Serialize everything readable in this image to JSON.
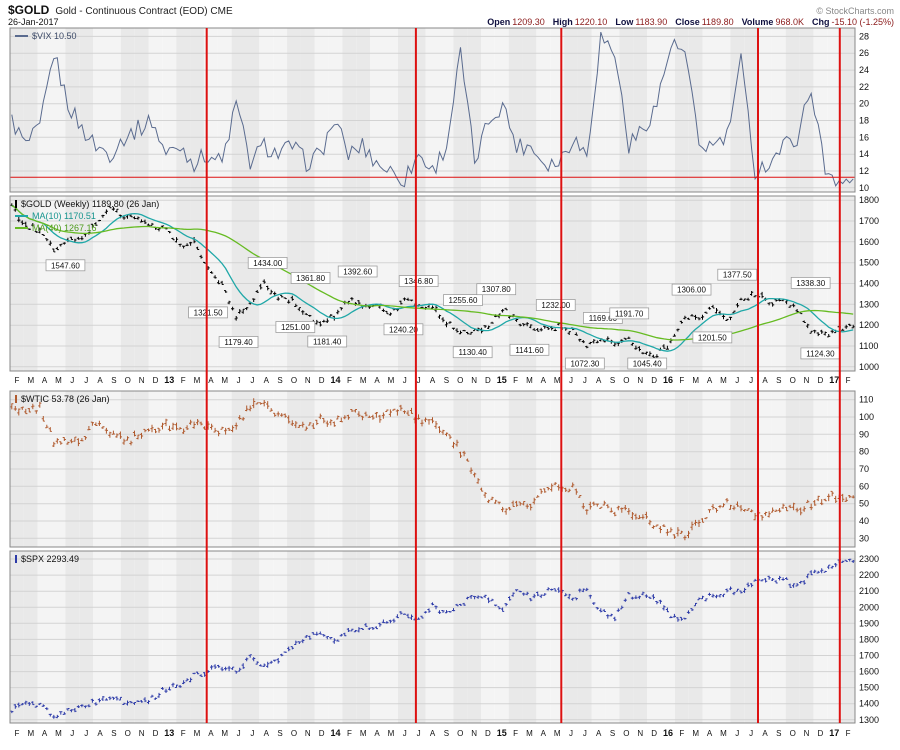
{
  "header": {
    "symbol": "$GOLD",
    "title": "Gold - Continuous Contract (EOD) CME",
    "date": "26-Jan-2017",
    "copyright": "© StockCharts.com",
    "quote": [
      {
        "label": "Open",
        "value": "1209.30"
      },
      {
        "label": "High",
        "value": "1220.10"
      },
      {
        "label": "Low",
        "value": "1183.90"
      },
      {
        "label": "Close",
        "value": "1189.80"
      },
      {
        "label": "Volume",
        "value": "968.0K"
      },
      {
        "label": "Chg",
        "value": "-15.10 (-1.25%)"
      }
    ]
  },
  "x_axis": {
    "labels": [
      "F",
      "M",
      "A",
      "M",
      "J",
      "J",
      "A",
      "S",
      "O",
      "N",
      "D",
      "13",
      "F",
      "M",
      "A",
      "M",
      "J",
      "J",
      "A",
      "S",
      "O",
      "N",
      "D",
      "14",
      "F",
      "M",
      "A",
      "M",
      "J",
      "J",
      "A",
      "S",
      "O",
      "N",
      "D",
      "15",
      "F",
      "M",
      "A",
      "M",
      "J",
      "J",
      "A",
      "S",
      "O",
      "N",
      "D",
      "16",
      "F",
      "M",
      "A",
      "M",
      "J",
      "J",
      "A",
      "S",
      "O",
      "N",
      "D",
      "17",
      "F"
    ]
  },
  "red_vlines": [
    14.2,
    29.3,
    39.8,
    54.0,
    59.9
  ],
  "colors": {
    "red_line": "#dd1111",
    "background_band_dark": "#e9e9e9",
    "background_band_light": "#f4f4f4"
  },
  "chart_data": [
    {
      "type": "line",
      "name": "$VIX",
      "legend": "$VIX 10.50",
      "last": 10.5,
      "color": "#5a6b8f",
      "ylim": [
        9.5,
        29
      ],
      "yticks": [
        28,
        26,
        24,
        22,
        20,
        18,
        16,
        14,
        12,
        10
      ],
      "support_line": 11.25,
      "values": [
        18,
        15,
        17,
        26,
        20,
        17,
        15,
        14,
        16,
        17,
        18,
        14,
        15,
        13,
        14,
        13,
        20,
        13,
        15,
        14,
        15,
        13,
        14,
        18,
        14,
        15,
        13,
        12,
        11,
        14,
        12,
        15,
        26,
        13,
        18,
        20,
        15,
        15,
        13,
        13,
        16,
        14,
        28,
        26,
        15,
        17,
        20,
        27,
        26,
        15,
        15,
        16,
        25,
        12,
        13,
        15,
        16,
        22,
        12,
        11,
        10.5
      ]
    },
    {
      "type": "ohlc",
      "name": "$GOLD",
      "legend": "$GOLD (Weekly) 1189.80 (26 Jan)",
      "last": 1189.8,
      "color": "#000000",
      "ylim": [
        980,
        1820
      ],
      "yticks": [
        1800,
        1700,
        1600,
        1500,
        1400,
        1300,
        1200,
        1100,
        1000
      ],
      "values": [
        1770,
        1670,
        1660,
        1560,
        1600,
        1615,
        1690,
        1770,
        1720,
        1715,
        1675,
        1660,
        1580,
        1595,
        1470,
        1390,
        1235,
        1310,
        1395,
        1330,
        1325,
        1250,
        1205,
        1245,
        1325,
        1295,
        1295,
        1250,
        1325,
        1285,
        1285,
        1210,
        1170,
        1175,
        1185,
        1280,
        1215,
        1185,
        1185,
        1190,
        1170,
        1095,
        1135,
        1115,
        1140,
        1065,
        1060,
        1115,
        1240,
        1235,
        1290,
        1215,
        1320,
        1350,
        1310,
        1315,
        1275,
        1175,
        1150,
        1190,
        1190
      ],
      "overlays": [
        {
          "name": "MA(10)",
          "legend": "MA(10) 1170.51",
          "color": "#20a8a8",
          "period": 10
        },
        {
          "name": "MA(40)",
          "legend": "MA(40) 1267.16",
          "color": "#66bb22",
          "period": 40
        }
      ],
      "annotations": [
        {
          "text": "1547.60",
          "idx": 4.0,
          "value": 1547.6,
          "side": "below"
        },
        {
          "text": "1321.50",
          "idx": 14.3,
          "value": 1321.5,
          "side": "below"
        },
        {
          "text": "1179.40",
          "idx": 16.5,
          "value": 1179.4,
          "side": "below"
        },
        {
          "text": "1434.00",
          "idx": 18.6,
          "value": 1434.0,
          "side": "above"
        },
        {
          "text": "1251.00",
          "idx": 20.6,
          "value": 1251.0,
          "side": "below"
        },
        {
          "text": "1361.80",
          "idx": 21.7,
          "value": 1361.8,
          "side": "above"
        },
        {
          "text": "1181.40",
          "idx": 22.9,
          "value": 1181.4,
          "side": "below"
        },
        {
          "text": "1392.60",
          "idx": 25.1,
          "value": 1392.6,
          "side": "above"
        },
        {
          "text": "1240.20",
          "idx": 28.4,
          "value": 1240.2,
          "side": "below"
        },
        {
          "text": "1346.80",
          "idx": 29.5,
          "value": 1346.8,
          "side": "above"
        },
        {
          "text": "1255.60",
          "idx": 32.7,
          "value": 1255.6,
          "side": "above"
        },
        {
          "text": "1130.40",
          "idx": 33.4,
          "value": 1130.4,
          "side": "below"
        },
        {
          "text": "1307.80",
          "idx": 35.1,
          "value": 1307.8,
          "side": "above"
        },
        {
          "text": "1141.60",
          "idx": 37.5,
          "value": 1141.6,
          "side": "below"
        },
        {
          "text": "1232.00",
          "idx": 39.4,
          "value": 1232.0,
          "side": "above"
        },
        {
          "text": "1072.30",
          "idx": 41.5,
          "value": 1072.3,
          "side": "below"
        },
        {
          "text": "1169.60",
          "idx": 42.8,
          "value": 1169.6,
          "side": "above"
        },
        {
          "text": "1191.70",
          "idx": 44.7,
          "value": 1191.7,
          "side": "above"
        },
        {
          "text": "1045.40",
          "idx": 46.0,
          "value": 1045.4,
          "side": "below"
        },
        {
          "text": "1306.00",
          "idx": 49.2,
          "value": 1306.0,
          "side": "above"
        },
        {
          "text": "1201.50",
          "idx": 50.7,
          "value": 1201.5,
          "side": "below"
        },
        {
          "text": "1377.50",
          "idx": 52.5,
          "value": 1377.5,
          "side": "above"
        },
        {
          "text": "1338.30",
          "idx": 57.8,
          "value": 1338.3,
          "side": "above"
        },
        {
          "text": "1124.30",
          "idx": 58.5,
          "value": 1124.3,
          "side": "below"
        }
      ]
    },
    {
      "type": "ohlc",
      "name": "$WTIC",
      "legend": "$WTIC 53.78 (26 Jan)",
      "last": 53.78,
      "color": "#b05a2e",
      "ylim": [
        25,
        115
      ],
      "yticks": [
        110,
        100,
        90,
        80,
        70,
        60,
        50,
        40,
        30
      ],
      "values": [
        107,
        103,
        105,
        86,
        85,
        88,
        96,
        92,
        86,
        89,
        92,
        97,
        92,
        97,
        93,
        92,
        96,
        105,
        108,
        102,
        96,
        93,
        98,
        97,
        102,
        101,
        100,
        103,
        105,
        98,
        96,
        91,
        81,
        66,
        53,
        48,
        50,
        48,
        59,
        60,
        59,
        47,
        49,
        45,
        46,
        42,
        37,
        34,
        33,
        38,
        46,
        49,
        48,
        41,
        45,
        48,
        47,
        49,
        54,
        53,
        53.78
      ]
    },
    {
      "type": "ohlc",
      "name": "$SPX",
      "legend": "$SPX 2293.49",
      "last": 2293.49,
      "color": "#2c3aa8",
      "ylim": [
        1280,
        2350
      ],
      "yticks": [
        2300,
        2200,
        2100,
        2000,
        1900,
        1800,
        1700,
        1600,
        1500,
        1400,
        1300
      ],
      "values": [
        1366,
        1408,
        1398,
        1310,
        1362,
        1379,
        1407,
        1441,
        1412,
        1416,
        1426,
        1498,
        1515,
        1569,
        1598,
        1631,
        1606,
        1686,
        1633,
        1682,
        1757,
        1806,
        1848,
        1783,
        1859,
        1872,
        1884,
        1924,
        1960,
        1931,
        2003,
        1972,
        2018,
        2068,
        2059,
        1995,
        2105,
        2068,
        2086,
        2107,
        2063,
        2104,
        1972,
        1920,
        2079,
        2080,
        2044,
        1940,
        1932,
        2060,
        2065,
        2097,
        2099,
        2174,
        2171,
        2168,
        2126,
        2199,
        2239,
        2279,
        2294
      ]
    }
  ]
}
